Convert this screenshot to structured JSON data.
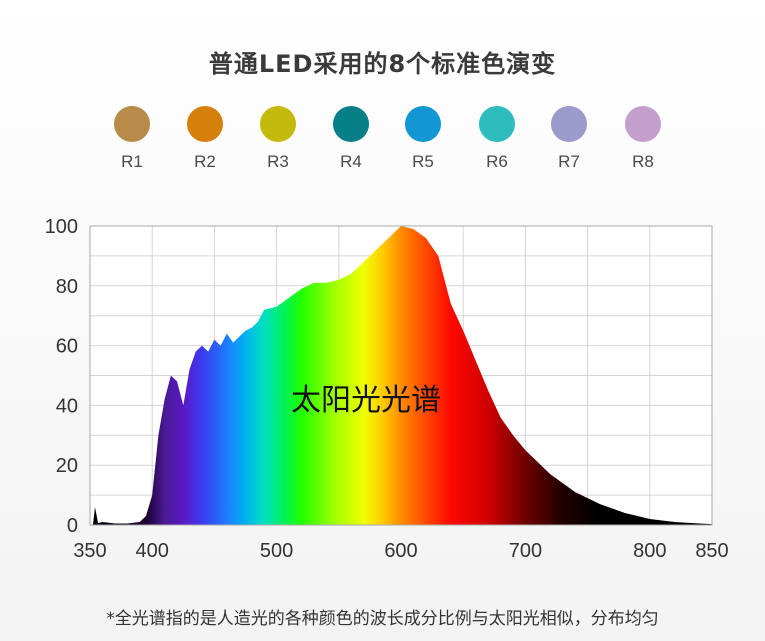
{
  "title": "普通LED采用的8个标准色演变",
  "swatches": [
    {
      "label": "R1",
      "color": "#b98a4a"
    },
    {
      "label": "R2",
      "color": "#d4800a"
    },
    {
      "label": "R3",
      "color": "#c4ba0c"
    },
    {
      "label": "R4",
      "color": "#067f86"
    },
    {
      "label": "R5",
      "color": "#1296d4"
    },
    {
      "label": "R6",
      "color": "#2ebcbd"
    },
    {
      "label": "R7",
      "color": "#9a9acb"
    },
    {
      "label": "R8",
      "color": "#c59fcb"
    }
  ],
  "chart_data": {
    "type": "area",
    "annotation": "太阳光光谱",
    "xlim": [
      350,
      850
    ],
    "ylim": [
      0,
      100
    ],
    "x_ticks": [
      350,
      400,
      500,
      600,
      700,
      800,
      850
    ],
    "y_ticks": [
      0,
      20,
      40,
      60,
      80,
      100
    ],
    "grid": true,
    "x": [
      350,
      360,
      370,
      380,
      390,
      395,
      400,
      405,
      410,
      415,
      420,
      425,
      430,
      435,
      440,
      445,
      450,
      455,
      460,
      465,
      470,
      475,
      480,
      485,
      490,
      500,
      510,
      520,
      530,
      540,
      550,
      560,
      570,
      580,
      590,
      600,
      610,
      620,
      630,
      635,
      640,
      650,
      660,
      670,
      680,
      690,
      700,
      720,
      740,
      760,
      780,
      800,
      820,
      840,
      850
    ],
    "y": [
      0,
      1,
      0.5,
      0.5,
      1,
      3,
      10,
      30,
      42,
      50,
      48,
      40,
      52,
      58,
      60,
      58,
      62,
      60,
      64,
      61,
      63,
      65,
      66,
      68,
      72,
      73,
      76,
      79,
      81,
      81,
      82,
      84,
      88,
      92,
      96,
      100,
      99,
      96,
      90,
      82,
      74,
      65,
      55,
      45,
      36,
      30,
      25,
      17,
      11,
      7,
      4,
      2,
      1,
      0.5,
      0.3
    ],
    "spike": {
      "x": 354,
      "y": 6
    }
  },
  "footnote": "*全光谱指的是人造光的各种颜色的波长成分比例与太阳光相似，分布均匀"
}
